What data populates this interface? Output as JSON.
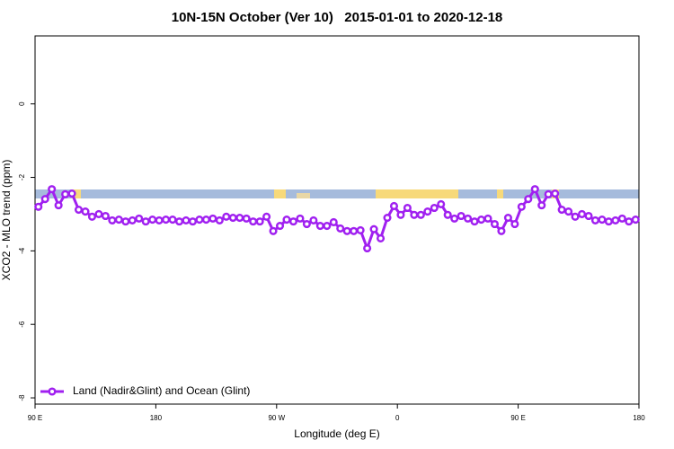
{
  "chart_data": {
    "type": "line",
    "title": "10N-15N October (Ver 10)   2015-01-01 to 2020-12-18",
    "xlabel": "Longitude (deg E)",
    "ylabel": "XCO2 - MLO trend (ppm)",
    "x": [
      92.5,
      97.5,
      102.5,
      107.5,
      112.5,
      117.5,
      122.5,
      127.5,
      132.5,
      137.5,
      142.5,
      147.5,
      152.5,
      157.5,
      162.5,
      167.5,
      172.5,
      177.5,
      182.5,
      187.5,
      192.5,
      197.5,
      202.5,
      207.5,
      212.5,
      217.5,
      222.5,
      227.5,
      232.5,
      237.5,
      242.5,
      247.5,
      252.5,
      257.5,
      262.5,
      267.5,
      272.5,
      277.5,
      282.5,
      287.5,
      292.5,
      297.5,
      302.5,
      307.5,
      312.5,
      317.5,
      322.5,
      327.5,
      332.5,
      337.5,
      342.5,
      347.5,
      352.5,
      357.5,
      362.5,
      367.5,
      372.5,
      377.5,
      382.5,
      387.5,
      392.5,
      397.5,
      402.5,
      407.5,
      412.5,
      417.5,
      422.5,
      427.5,
      432.5,
      437.5,
      442.5,
      447.5,
      452.5,
      457.5,
      462.5,
      467.5,
      472.5,
      477.5,
      482.5,
      487.5,
      492.5,
      497.5,
      502.5,
      507.5,
      512.5,
      517.5,
      522.5,
      527.5,
      532.5,
      537.5
    ],
    "series": [
      {
        "name": "Land (Nadir&Glint) and Ocean (Glint)",
        "color": "#a020f0",
        "values": [
          -2.8,
          -2.59,
          -2.32,
          -2.76,
          -2.46,
          -2.44,
          -2.88,
          -2.93,
          -3.07,
          -3.0,
          -3.05,
          -3.17,
          -3.15,
          -3.2,
          -3.17,
          -3.12,
          -3.2,
          -3.15,
          -3.17,
          -3.15,
          -3.15,
          -3.2,
          -3.17,
          -3.2,
          -3.15,
          -3.15,
          -3.12,
          -3.17,
          -3.07,
          -3.1,
          -3.1,
          -3.12,
          -3.2,
          -3.2,
          -3.07,
          -3.46,
          -3.32,
          -3.15,
          -3.2,
          -3.12,
          -3.27,
          -3.17,
          -3.32,
          -3.32,
          -3.22,
          -3.39,
          -3.46,
          -3.46,
          -3.44,
          -3.93,
          -3.41,
          -3.66,
          -3.1,
          -2.78,
          -3.02,
          -2.83,
          -3.02,
          -3.02,
          -2.93,
          -2.83,
          -2.73,
          -3.02,
          -3.12,
          -3.05,
          -3.12,
          -3.2,
          -3.15,
          -3.12,
          -3.27,
          -3.46,
          -3.1,
          -3.27,
          -2.8,
          -2.59,
          -2.32,
          -2.76,
          -2.46,
          -2.44,
          -2.88,
          -2.93,
          -3.07,
          -3.0,
          -3.05,
          -3.17,
          -3.15,
          -3.2,
          -3.17,
          -3.12,
          -3.2,
          -3.15
        ]
      }
    ],
    "xlim": [
      90,
      540
    ],
    "xticks": [
      {
        "value": 90,
        "label": "90 E"
      },
      180,
      {
        "value": 270,
        "label": "90 W"
      },
      {
        "value": 360,
        "label": "0"
      },
      {
        "value": 450,
        "label": "90 E"
      },
      {
        "value": 540,
        "label": "180"
      }
    ],
    "ylim": [
      -8.17,
      1.85
    ],
    "yticks": [
      0,
      -2,
      -4,
      -6,
      -8
    ],
    "legend": "bottom-left"
  }
}
